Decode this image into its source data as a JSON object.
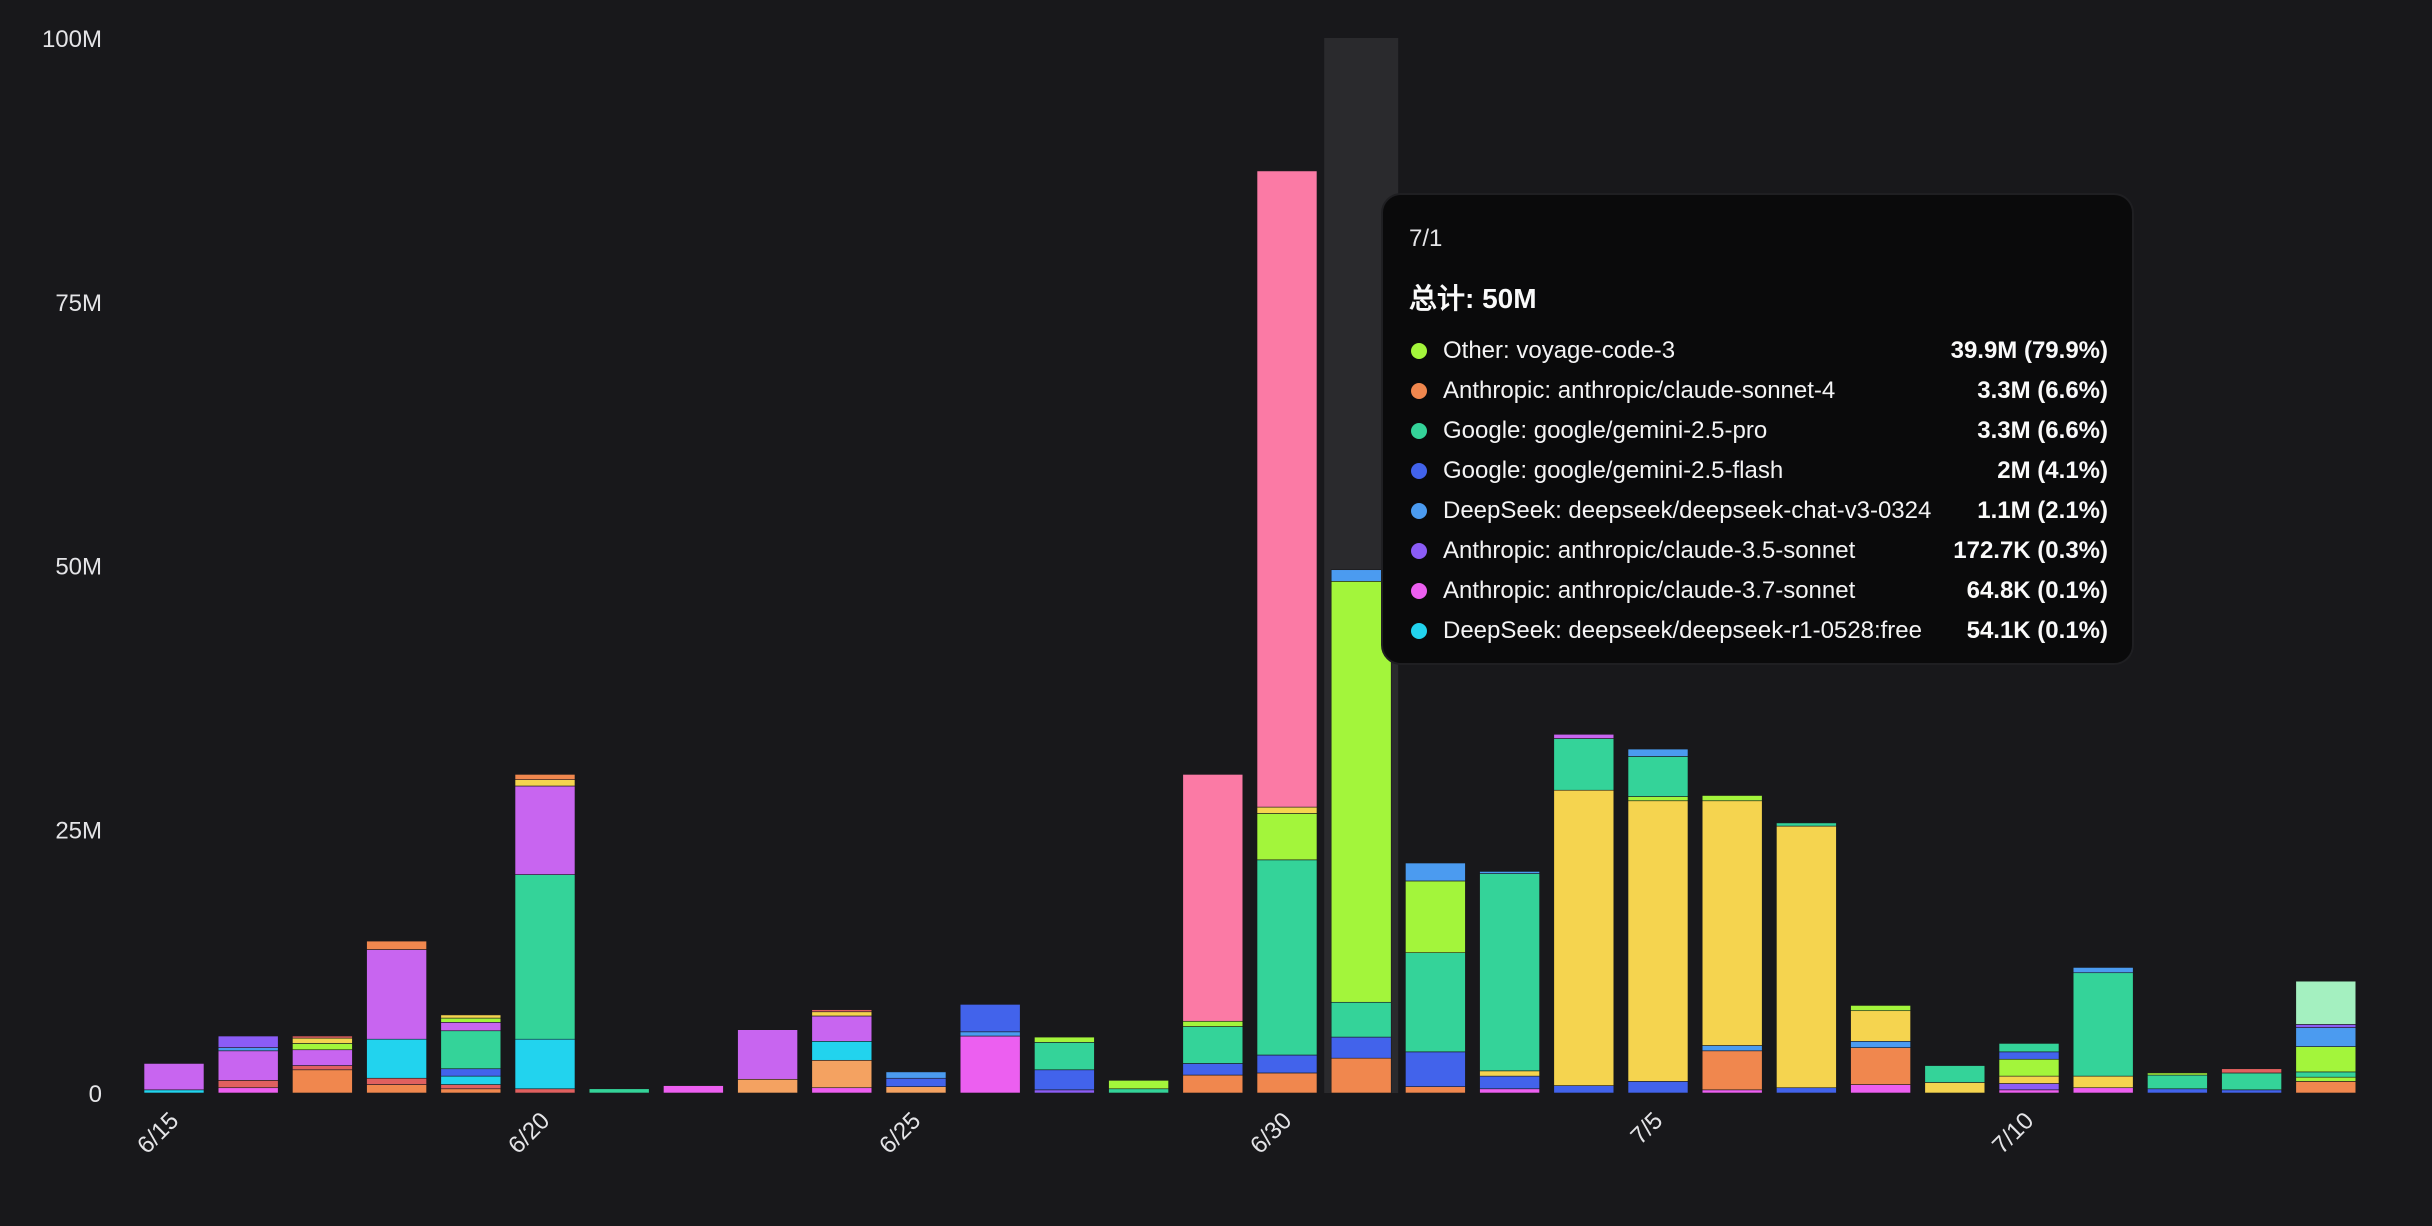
{
  "chart_data": {
    "type": "bar",
    "stacked": true,
    "yticks": [
      "0",
      "25M",
      "50M",
      "75M",
      "100M"
    ],
    "ylim": [
      0,
      100
    ],
    "categories": [
      "6/15",
      "6/16",
      "6/17",
      "6/18",
      "6/19",
      "6/20",
      "6/21",
      "6/22",
      "6/23",
      "6/24",
      "6/25",
      "6/26",
      "6/27",
      "6/28",
      "6/29",
      "6/30",
      "7/1",
      "7/2",
      "7/3",
      "7/4",
      "7/5",
      "7/6",
      "7/7",
      "7/8",
      "7/9",
      "7/10",
      "7/11",
      "7/12",
      "7/13",
      "7/14"
    ],
    "xtick_labels": [
      "6/15",
      "",
      "",
      "",
      "",
      "6/20",
      "",
      "",
      "",
      "",
      "6/25",
      "",
      "",
      "",
      "",
      "6/30",
      "",
      "",
      "",
      "",
      "7/5",
      "",
      "",
      "",
      "",
      "7/10",
      "",
      "",
      "",
      ""
    ],
    "highlight_index": 16,
    "colors": {
      "cyan": "#22d3ee",
      "orange": "#f0874e",
      "peach": "#f4a261",
      "purple": "#c865f0",
      "violet": "#8b5cf6",
      "green": "#34d399",
      "lime": "#a3f53b",
      "yellow": "#f5d44f",
      "blue": "#4263eb",
      "lightblue": "#4b9bf0",
      "pink": "#fb7aa5",
      "magenta": "#ec5ff0",
      "mint": "#a4f0c0",
      "red": "#e0605f"
    },
    "bars": [
      [
        [
          "cyan",
          0.3
        ],
        [
          "purple",
          2.5
        ]
      ],
      [
        [
          "magenta",
          0.5
        ],
        [
          "red",
          0.7
        ],
        [
          "purple",
          2.8
        ],
        [
          "lightblue",
          0.3
        ],
        [
          "violet",
          1.1
        ]
      ],
      [
        [
          "orange",
          2.2
        ],
        [
          "red",
          0.4
        ],
        [
          "purple",
          1.5
        ],
        [
          "lime",
          0.6
        ],
        [
          "yellow",
          0.5
        ],
        [
          "red",
          0.2
        ]
      ],
      [
        [
          "orange",
          0.8
        ],
        [
          "red",
          0.6
        ],
        [
          "cyan",
          3.7
        ],
        [
          "purple",
          8.5
        ],
        [
          "orange",
          0.8
        ]
      ],
      [
        [
          "orange",
          0.4
        ],
        [
          "red",
          0.4
        ],
        [
          "cyan",
          0.8
        ],
        [
          "blue",
          0.7
        ],
        [
          "green",
          3.6
        ],
        [
          "purple",
          0.8
        ],
        [
          "lime",
          0.4
        ],
        [
          "yellow",
          0.3
        ]
      ],
      [
        [
          "red",
          0.4
        ],
        [
          "cyan",
          4.7
        ],
        [
          "green",
          15.6
        ],
        [
          "purple",
          8.4
        ],
        [
          "yellow",
          0.6
        ],
        [
          "orange",
          0.5
        ]
      ],
      [
        [
          "green",
          0.4
        ]
      ],
      [
        [
          "magenta",
          0.7
        ]
      ],
      [
        [
          "peach",
          1.3
        ],
        [
          "purple",
          4.7
        ]
      ],
      [
        [
          "magenta",
          0.5
        ],
        [
          "peach",
          2.6
        ],
        [
          "cyan",
          1.8
        ],
        [
          "purple",
          2.4
        ],
        [
          "yellow",
          0.4
        ],
        [
          "red",
          0.2
        ]
      ],
      [
        [
          "peach",
          0.6
        ],
        [
          "blue",
          0.8
        ],
        [
          "lightblue",
          0.6
        ]
      ],
      [
        [
          "magenta",
          5.4
        ],
        [
          "lightblue",
          0.4
        ],
        [
          "blue",
          2.6
        ]
      ],
      [
        [
          "violet",
          0.3
        ],
        [
          "blue",
          1.9
        ],
        [
          "green",
          2.6
        ],
        [
          "lime",
          0.5
        ]
      ],
      [
        [
          "green",
          0.4
        ],
        [
          "lime",
          0.8
        ]
      ],
      [
        [
          "orange",
          1.7
        ],
        [
          "blue",
          1.1
        ],
        [
          "green",
          3.5
        ],
        [
          "lime",
          0.5
        ],
        [
          "pink",
          23.4
        ]
      ],
      [
        [
          "orange",
          1.9
        ],
        [
          "blue",
          1.7
        ],
        [
          "green",
          18.5
        ],
        [
          "lime",
          4.4
        ],
        [
          "yellow",
          0.6
        ],
        [
          "pink",
          60.3
        ]
      ],
      [
        [
          "orange",
          3.3
        ],
        [
          "blue",
          2.0
        ],
        [
          "green",
          3.3
        ],
        [
          "lime",
          39.9
        ],
        [
          "lightblue",
          1.1
        ]
      ],
      [
        [
          "orange",
          0.6
        ],
        [
          "blue",
          3.3
        ],
        [
          "green",
          9.4
        ],
        [
          "lime",
          6.8
        ],
        [
          "lightblue",
          1.7
        ]
      ],
      [
        [
          "magenta",
          0.4
        ],
        [
          "blue",
          1.2
        ],
        [
          "yellow",
          0.5
        ],
        [
          "green",
          18.7
        ],
        [
          "lightblue",
          0.2
        ]
      ],
      [
        [
          "blue",
          0.7
        ],
        [
          "yellow",
          28.0
        ],
        [
          "green",
          4.9
        ],
        [
          "purple",
          0.4
        ]
      ],
      [
        [
          "blue",
          1.1
        ],
        [
          "yellow",
          26.6
        ],
        [
          "lime",
          0.4
        ],
        [
          "green",
          3.8
        ],
        [
          "lightblue",
          0.7
        ]
      ],
      [
        [
          "magenta",
          0.3
        ],
        [
          "orange",
          3.7
        ],
        [
          "lightblue",
          0.5
        ],
        [
          "yellow",
          23.2
        ],
        [
          "lime",
          0.5
        ]
      ],
      [
        [
          "blue",
          0.5
        ],
        [
          "yellow",
          24.8
        ],
        [
          "green",
          0.3
        ]
      ],
      [
        [
          "magenta",
          0.8
        ],
        [
          "orange",
          3.5
        ],
        [
          "lightblue",
          0.6
        ],
        [
          "yellow",
          2.9
        ],
        [
          "lime",
          0.5
        ]
      ],
      [
        [
          "yellow",
          1.0
        ],
        [
          "green",
          1.6
        ]
      ],
      [
        [
          "magenta",
          0.3
        ],
        [
          "violet",
          0.6
        ],
        [
          "yellow",
          0.7
        ],
        [
          "lime",
          1.6
        ],
        [
          "blue",
          0.7
        ],
        [
          "green",
          0.8
        ]
      ],
      [
        [
          "magenta",
          0.5
        ],
        [
          "yellow",
          1.1
        ],
        [
          "green",
          9.8
        ],
        [
          "lightblue",
          0.5
        ]
      ],
      [
        [
          "blue",
          0.4
        ],
        [
          "green",
          1.3
        ],
        [
          "lime",
          0.2
        ]
      ],
      [
        [
          "blue",
          0.3
        ],
        [
          "green",
          1.6
        ],
        [
          "red",
          0.4
        ]
      ],
      [
        [
          "orange",
          1.1
        ],
        [
          "lime",
          0.4
        ],
        [
          "green",
          0.5
        ],
        [
          "lime",
          2.4
        ],
        [
          "lightblue",
          1.8
        ],
        [
          "violet",
          0.3
        ],
        [
          "mint",
          4.1
        ]
      ]
    ]
  },
  "tooltip": {
    "date": "7/1",
    "total": "总计: 50M",
    "items": [
      {
        "label": "Other: voyage-code-3",
        "value": "39.9M (79.9%)",
        "color": "#a3f53b"
      },
      {
        "label": "Anthropic: anthropic/claude-sonnet-4",
        "value": "3.3M (6.6%)",
        "color": "#f0874e"
      },
      {
        "label": "Google: google/gemini-2.5-pro",
        "value": "3.3M (6.6%)",
        "color": "#34d399"
      },
      {
        "label": "Google: google/gemini-2.5-flash",
        "value": "2M (4.1%)",
        "color": "#4263eb"
      },
      {
        "label": "DeepSeek: deepseek/deepseek-chat-v3-0324",
        "value": "1.1M (2.1%)",
        "color": "#4b9bf0"
      },
      {
        "label": "Anthropic: anthropic/claude-3.5-sonnet",
        "value": "172.7K (0.3%)",
        "color": "#8b5cf6"
      },
      {
        "label": "Anthropic: anthropic/claude-3.7-sonnet",
        "value": "64.8K (0.1%)",
        "color": "#ec5ff0"
      },
      {
        "label": "DeepSeek: deepseek/deepseek-r1-0528:free",
        "value": "54.1K (0.1%)",
        "color": "#22d3ee"
      }
    ]
  }
}
